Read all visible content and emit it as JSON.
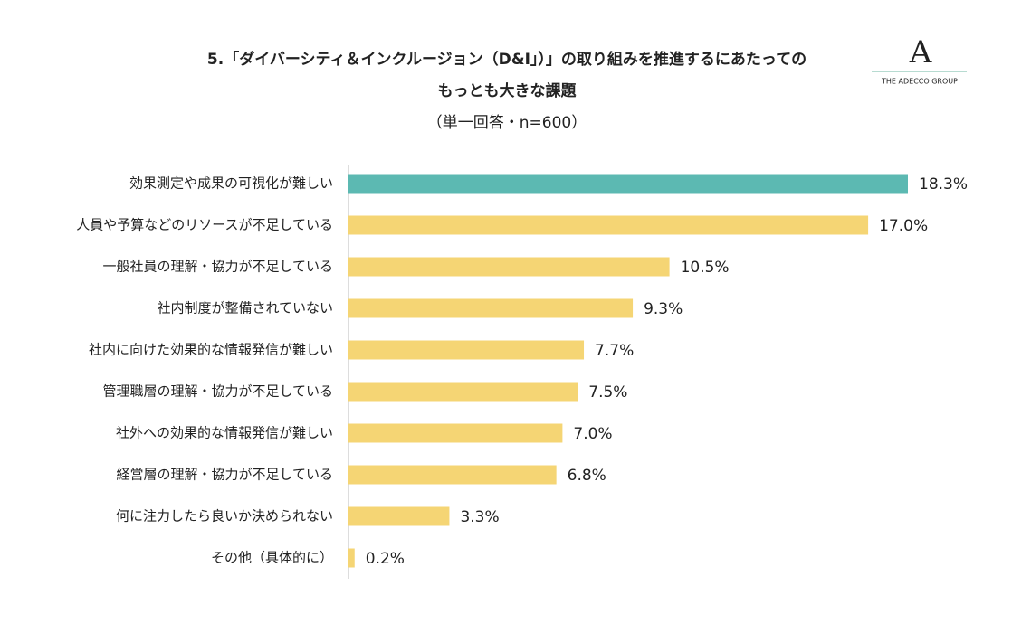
{
  "chart_data": {
    "type": "bar",
    "orientation": "horizontal",
    "title": "5.「ダイバーシティ＆インクルージョン（D&I」）」の取り組みを推進するにあたっての",
    "title_line2": "もっとも大きな課題",
    "subtitle": "（単一回答・n=600）",
    "categories": [
      "効果測定や成果の可視化が難しい",
      "人員や予算などのリソースが不足している",
      "一般社員の理解・協力が不足している",
      "社内制度が整備されていない",
      "社内に向けた効果的な情報発信が難しい",
      "管理職層の理解・協力が不足している",
      "社外への効果的な情報発信が難しい",
      "経営層の理解・協力が不足している",
      "何に注力したら良いか決められない",
      "その他（具体的に）"
    ],
    "values": [
      18.3,
      17.0,
      10.5,
      9.3,
      7.7,
      7.5,
      7.0,
      6.8,
      3.3,
      0.2
    ],
    "value_labels": [
      "18.3%",
      "17.0%",
      "10.5%",
      "9.3%",
      "7.7%",
      "7.5%",
      "7.0%",
      "6.8%",
      "3.3%",
      "0.2%"
    ],
    "colors": [
      "#5cb9b2",
      "#f5d574",
      "#f5d574",
      "#f5d574",
      "#f5d574",
      "#f5d574",
      "#f5d574",
      "#f5d574",
      "#f5d574",
      "#f5d574"
    ]
  },
  "logo": {
    "mark": "A",
    "text": "THE ADECCO GROUP"
  }
}
